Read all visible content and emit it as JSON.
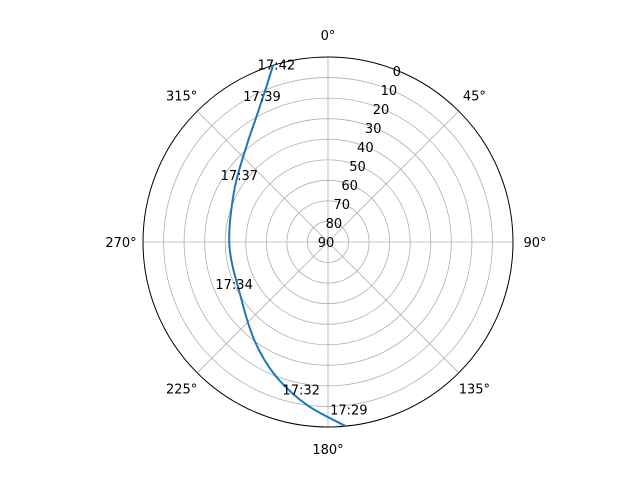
{
  "chart_data": {
    "type": "polar",
    "theta_zero": "N",
    "theta_direction": "clockwise",
    "r_axis": "elevation",
    "r_range": [
      0,
      90
    ],
    "r_ticks": [
      "0",
      "10",
      "20",
      "30",
      "40",
      "50",
      "60",
      "70",
      "80",
      "90"
    ],
    "r_tick_values": [
      0,
      10,
      20,
      30,
      40,
      50,
      60,
      70,
      80,
      90
    ],
    "theta_ticks": [
      "0°",
      "45°",
      "90°",
      "135°",
      "180°",
      "225°",
      "270°",
      "315°"
    ],
    "theta_tick_values": [
      0,
      45,
      90,
      135,
      180,
      225,
      270,
      315
    ],
    "grid": true,
    "series": [
      {
        "color": "#1f77b4",
        "points": [
          {
            "az": 174.5,
            "el": 0
          },
          {
            "az": 187.3,
            "el": 10
          },
          {
            "az": 201.3,
            "el": 20
          },
          {
            "az": 216.4,
            "el": 30
          },
          {
            "az": 238.4,
            "el": 40
          },
          {
            "az": 268.2,
            "el": 42
          },
          {
            "az": 298.6,
            "el": 38
          },
          {
            "az": 319.3,
            "el": 29
          },
          {
            "az": 331.0,
            "el": 19
          },
          {
            "az": 338.2,
            "el": 9
          },
          {
            "az": 342.7,
            "el": 0
          }
        ]
      }
    ],
    "time_labels": [
      {
        "text": "17:42",
        "az": 343.8,
        "el": 0
      },
      {
        "text": "17:39",
        "az": 335.7,
        "el": 12
      },
      {
        "text": "17:37",
        "az": 307.0,
        "el": 36
      },
      {
        "text": "17:34",
        "az": 246.0,
        "el": 40
      },
      {
        "text": "17:32",
        "az": 190.3,
        "el": 17
      },
      {
        "text": "17:29",
        "az": 172.9,
        "el": 8
      }
    ]
  }
}
